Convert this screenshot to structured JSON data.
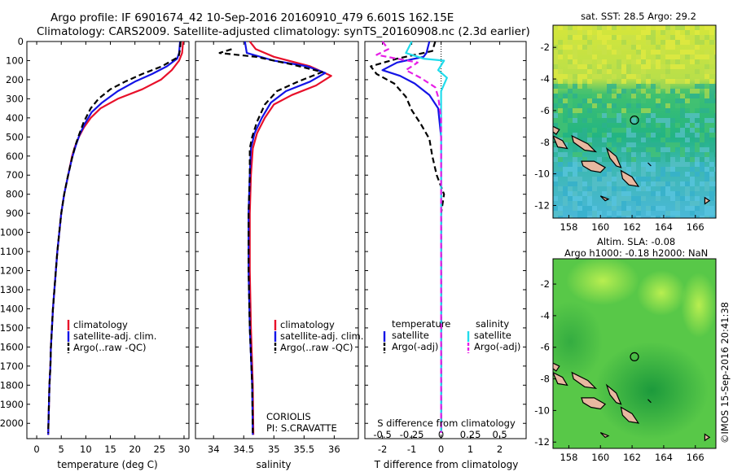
{
  "header": {
    "line1": "Argo profile: IF 6901674_42 10-Sep-2016 20160910_479 6.601S 162.15E",
    "line2": "Climatology: CARS2009. Satellite-adjusted climatology: synTS_20160908.nc (2.3d earlier)"
  },
  "side_stamp": "©IMOS 15-Sep-2016 20:41:38",
  "colors": {
    "climatology": "#e8102a",
    "satellite": "#1414e6",
    "argo": "#000000",
    "sal_sat": "#22dcec",
    "sal_argo": "#e620e6"
  },
  "chart_data": [
    {
      "type": "line",
      "xlabel": "temperature (deg C)",
      "ylabel": "",
      "xlim": [
        -2,
        31
      ],
      "ylim": [
        2080,
        0
      ],
      "xticks": [
        0,
        5,
        10,
        15,
        20,
        25,
        30
      ],
      "yticks": [
        0,
        100,
        200,
        300,
        400,
        500,
        600,
        700,
        800,
        900,
        1000,
        1100,
        1200,
        1300,
        1400,
        1500,
        1600,
        1700,
        1800,
        1900,
        2000
      ],
      "legend": {
        "position": "lower-center",
        "entries": [
          "climatology",
          "satellite-adj. clim.",
          "Argo(..raw -QC)"
        ]
      },
      "series": [
        {
          "name": "climatology",
          "color": "#e8102a",
          "points": [
            [
              29.8,
              0
            ],
            [
              29.6,
              60
            ],
            [
              29.0,
              100
            ],
            [
              27.5,
              150
            ],
            [
              25.3,
              200
            ],
            [
              21.5,
              250
            ],
            [
              16.5,
              300
            ],
            [
              13.0,
              350
            ],
            [
              11.0,
              400
            ],
            [
              9.6,
              450
            ],
            [
              8.6,
              500
            ],
            [
              7.8,
              550
            ],
            [
              7.2,
              600
            ],
            [
              6.4,
              700
            ],
            [
              5.6,
              800
            ],
            [
              5.0,
              900
            ],
            [
              4.6,
              1000
            ],
            [
              4.2,
              1100
            ],
            [
              3.9,
              1200
            ],
            [
              3.6,
              1300
            ],
            [
              3.3,
              1400
            ],
            [
              3.1,
              1500
            ],
            [
              2.9,
              1600
            ],
            [
              2.8,
              1700
            ],
            [
              2.6,
              1800
            ],
            [
              2.5,
              1900
            ],
            [
              2.4,
              2000
            ],
            [
              2.35,
              2060
            ]
          ]
        },
        {
          "name": "satellite-adj. clim.",
          "color": "#1414e6",
          "points": [
            [
              29.2,
              0
            ],
            [
              29.0,
              60
            ],
            [
              28.6,
              90
            ],
            [
              26.5,
              130
            ],
            [
              23.5,
              170
            ],
            [
              20.0,
              210
            ],
            [
              16.5,
              260
            ],
            [
              13.3,
              320
            ],
            [
              11.2,
              370
            ],
            [
              9.8,
              430
            ],
            [
              8.7,
              490
            ],
            [
              7.9,
              550
            ],
            [
              7.2,
              610
            ],
            [
              6.4,
              700
            ],
            [
              5.6,
              800
            ],
            [
              5.0,
              900
            ],
            [
              4.6,
              1000
            ],
            [
              4.2,
              1100
            ],
            [
              3.9,
              1200
            ],
            [
              3.6,
              1300
            ],
            [
              3.3,
              1400
            ],
            [
              3.1,
              1500
            ],
            [
              2.9,
              1600
            ],
            [
              2.8,
              1700
            ],
            [
              2.6,
              1800
            ],
            [
              2.5,
              1900
            ],
            [
              2.4,
              2000
            ],
            [
              2.35,
              2060
            ]
          ]
        },
        {
          "name": "Argo(..raw -QC)",
          "color": "#000000",
          "dashed": true,
          "points": [
            [
              29.3,
              0
            ],
            [
              29.2,
              40
            ],
            [
              28.9,
              80
            ],
            [
              25.5,
              130
            ],
            [
              21.5,
              170
            ],
            [
              18.0,
              210
            ],
            [
              15.0,
              250
            ],
            [
              12.6,
              300
            ],
            [
              11.0,
              350
            ],
            [
              9.6,
              420
            ],
            [
              8.6,
              490
            ],
            [
              7.8,
              550
            ],
            [
              7.1,
              620
            ],
            [
              6.3,
              710
            ],
            [
              5.6,
              800
            ],
            [
              5.0,
              900
            ],
            [
              4.6,
              1000
            ],
            [
              4.2,
              1100
            ],
            [
              3.9,
              1200
            ],
            [
              3.6,
              1300
            ],
            [
              3.3,
              1400
            ],
            [
              3.1,
              1500
            ],
            [
              2.9,
              1600
            ],
            [
              2.8,
              1700
            ],
            [
              2.6,
              1800
            ],
            [
              2.5,
              1900
            ],
            [
              2.4,
              2000
            ],
            [
              2.35,
              2050
            ]
          ]
        }
      ]
    },
    {
      "type": "line",
      "xlabel": "salinity",
      "xlim": [
        33.7,
        36.4
      ],
      "ylim": [
        2080,
        0
      ],
      "xticks": [
        34,
        34.5,
        35,
        35.5,
        36
      ],
      "annotations": [
        "CORIOLIS",
        "PI: S.CRAVATTE"
      ],
      "legend": {
        "position": "lower-center",
        "entries": [
          "climatology",
          "satellite-adj. clim.",
          "Argo(..raw -QC)"
        ]
      },
      "series": [
        {
          "name": "climatology",
          "color": "#e8102a",
          "points": [
            [
              34.6,
              0
            ],
            [
              34.7,
              40
            ],
            [
              35.0,
              80
            ],
            [
              35.6,
              130
            ],
            [
              35.95,
              180
            ],
            [
              35.7,
              230
            ],
            [
              35.3,
              280
            ],
            [
              35.0,
              330
            ],
            [
              34.85,
              400
            ],
            [
              34.72,
              480
            ],
            [
              34.65,
              560
            ],
            [
              34.62,
              700
            ],
            [
              34.6,
              900
            ],
            [
              34.6,
              1200
            ],
            [
              34.62,
              1500
            ],
            [
              34.65,
              1800
            ],
            [
              34.66,
              2060
            ]
          ]
        },
        {
          "name": "satellite-adj. clim.",
          "color": "#1414e6",
          "points": [
            [
              34.52,
              0
            ],
            [
              34.55,
              60
            ],
            [
              35.0,
              100
            ],
            [
              35.55,
              130
            ],
            [
              35.85,
              165
            ],
            [
              35.6,
              210
            ],
            [
              35.2,
              260
            ],
            [
              34.95,
              320
            ],
            [
              34.8,
              400
            ],
            [
              34.68,
              480
            ],
            [
              34.62,
              560
            ],
            [
              34.6,
              700
            ],
            [
              34.58,
              900
            ],
            [
              34.58,
              1200
            ],
            [
              34.6,
              1500
            ],
            [
              34.64,
              1800
            ],
            [
              34.65,
              2060
            ]
          ]
        },
        {
          "name": "Argo(..raw -QC)",
          "color": "#000000",
          "dashed": true,
          "points": [
            [
              34.3,
              40
            ],
            [
              34.1,
              60
            ],
            [
              34.7,
              80
            ],
            [
              35.3,
              120
            ],
            [
              35.8,
              160
            ],
            [
              35.4,
              210
            ],
            [
              35.05,
              260
            ],
            [
              34.85,
              330
            ],
            [
              34.72,
              420
            ],
            [
              34.64,
              500
            ],
            [
              34.6,
              560
            ],
            [
              34.6,
              700
            ],
            [
              34.58,
              900
            ],
            [
              34.58,
              1200
            ],
            [
              34.6,
              1500
            ],
            [
              34.64,
              1800
            ],
            [
              34.65,
              2050
            ]
          ]
        }
      ]
    },
    {
      "type": "line",
      "xlabel": "T difference from climatology",
      "top_axis_label": "S difference from climatology",
      "xlim": [
        -2.6,
        2.9
      ],
      "ylim": [
        2080,
        0
      ],
      "xticks": [
        -2,
        -1,
        0,
        1,
        2
      ],
      "top_ticks": [
        {
          "label": "-0.5",
          "at": -2
        },
        {
          "label": "-0.25",
          "at": -1
        },
        {
          "label": "0",
          "at": 0
        },
        {
          "label": "0.25",
          "at": 1
        },
        {
          "label": "0.5",
          "at": 2
        }
      ],
      "legend": {
        "position": "center",
        "entries": [
          "temperature",
          "satellite",
          "Argo(-adj)",
          "salinity",
          "satellite",
          "Argo(-adj)"
        ]
      },
      "series": [
        {
          "name": "temperature satellite",
          "color": "#1414e6",
          "points": [
            [
              -0.4,
              0
            ],
            [
              -0.5,
              60
            ],
            [
              -0.6,
              80
            ],
            [
              -1.5,
              110
            ],
            [
              -2.0,
              150
            ],
            [
              -1.4,
              180
            ],
            [
              -0.9,
              220
            ],
            [
              -0.4,
              280
            ],
            [
              -0.1,
              350
            ],
            [
              0.0,
              500
            ],
            [
              0.0,
              800
            ],
            [
              0.0,
              1200
            ],
            [
              0.0,
              1600
            ],
            [
              0.0,
              2050
            ]
          ]
        },
        {
          "name": "temperature Argo(-adj)",
          "color": "#000000",
          "dashed": true,
          "points": [
            [
              -0.2,
              0
            ],
            [
              -0.3,
              50
            ],
            [
              -1.5,
              90
            ],
            [
              -2.4,
              130
            ],
            [
              -2.2,
              170
            ],
            [
              -1.6,
              220
            ],
            [
              -1.2,
              290
            ],
            [
              -1.0,
              360
            ],
            [
              -0.7,
              430
            ],
            [
              -0.4,
              510
            ],
            [
              -0.3,
              600
            ],
            [
              -0.15,
              700
            ],
            [
              0.1,
              800
            ],
            [
              0.0,
              900
            ],
            [
              0.0,
              1200
            ],
            [
              0.0,
              1500
            ],
            [
              0.0,
              1800
            ],
            [
              0.0,
              2050
            ]
          ]
        },
        {
          "name": "salinity satellite",
          "color": "#22dcec",
          "points": [
            [
              -1.0,
              0
            ],
            [
              -1.2,
              60
            ],
            [
              -0.6,
              90
            ],
            [
              0.1,
              100
            ],
            [
              -0.1,
              150
            ],
            [
              0.2,
              190
            ],
            [
              0.0,
              260
            ],
            [
              0.0,
              400
            ],
            [
              0.0,
              600
            ],
            [
              0.0,
              900
            ],
            [
              0.0,
              1300
            ],
            [
              0.0,
              1700
            ],
            [
              0.0,
              2050
            ]
          ]
        },
        {
          "name": "salinity Argo(-adj)",
          "color": "#e620e6",
          "dashed": true,
          "points": [
            [
              -2.0,
              0
            ],
            [
              -1.8,
              40
            ],
            [
              -2.2,
              70
            ],
            [
              -0.8,
              110
            ],
            [
              -1.2,
              150
            ],
            [
              -0.7,
              190
            ],
            [
              -0.2,
              240
            ],
            [
              -0.1,
              290
            ],
            [
              0.0,
              400
            ],
            [
              0.0,
              800
            ],
            [
              0.0,
              1200
            ],
            [
              0.0,
              1700
            ],
            [
              0.0,
              2050
            ]
          ]
        }
      ]
    }
  ],
  "map_top": {
    "title": "sat. SST: 28.5 Argo: 29.2",
    "xticks": [
      158,
      160,
      162,
      164,
      166
    ],
    "yticks": [
      -2,
      -4,
      -6,
      -8,
      -10,
      -12
    ],
    "xlim": [
      157,
      167.3
    ],
    "ylim": [
      -12.8,
      -0.6
    ],
    "argo_position": [
      162.15,
      -6.601
    ]
  },
  "map_bottom": {
    "title_line1": "Altim. SLA: -0.08",
    "title_line2": "Argo h1000: -0.18 h2000: NaN",
    "xticks": [
      158,
      160,
      162,
      164,
      166
    ],
    "yticks": [
      -2,
      -4,
      -6,
      -8,
      -10,
      -12
    ],
    "xlim": [
      157,
      167.3
    ],
    "ylim": [
      -12.4,
      -0.4
    ],
    "argo_position": [
      162.15,
      -6.601
    ]
  },
  "legend_labels": {
    "climatology": "climatology",
    "satellite_clim": "satellite-adj. clim.",
    "argo_raw": "Argo(..raw -QC)",
    "temperature": "temperature",
    "salinity": "salinity",
    "satellite": "satellite",
    "argo_adj": "Argo(-adj)"
  }
}
